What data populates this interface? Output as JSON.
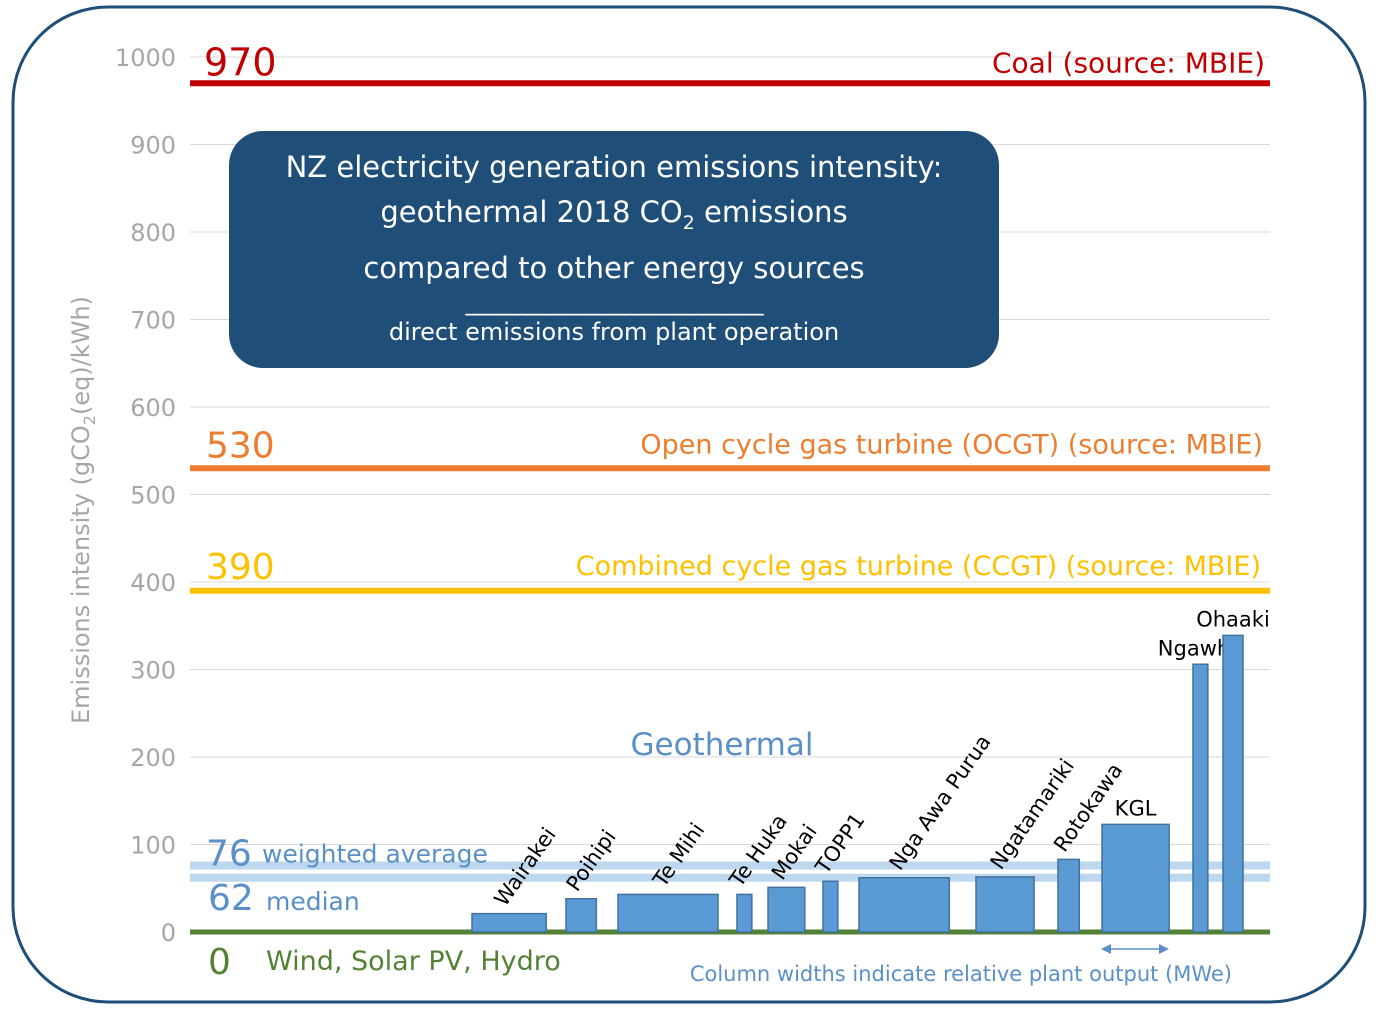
{
  "chart_data": {
    "type": "bar",
    "title_lines": [
      "NZ electricity generation emissions intensity:",
      "geothermal 2018 CO",
      "2",
      " emissions",
      "compared to other energy sources"
    ],
    "title_rule": "___________________________",
    "subtitle": "direct emissions from plant operation",
    "ylabel_parts": [
      "Emissions intensity (gCO",
      "2",
      "(eq)/kWh)"
    ],
    "ylim": [
      0,
      1000
    ],
    "yticks": [
      "0",
      "100",
      "200",
      "300",
      "400",
      "500",
      "600",
      "700",
      "800",
      "900",
      "1000"
    ],
    "grid": true,
    "group_label": "Geothermal",
    "width_note": "Column widths indicate relative plant output (MWe)",
    "categories": [
      "Wairakei",
      "Poihipi",
      "Te Mihi",
      "Te Huka",
      "Mokai",
      "TOPP1",
      "Nga Awa Purua",
      "Ngatamariki",
      "Rotokawa",
      "KGL",
      "Ngawha",
      "Ohaaki"
    ],
    "values": [
      21,
      38,
      43,
      43,
      51,
      58,
      62,
      63,
      83,
      123,
      306,
      339
    ],
    "relative_output_mwe": [
      115,
      47,
      155,
      23,
      57,
      23,
      140,
      90,
      33,
      104,
      23,
      31
    ],
    "bar_color": "#5b9bd5",
    "reference_lines": [
      {
        "value": 970,
        "value_label": "970",
        "label": "Coal (source: MBIE)",
        "color": "#c00000"
      },
      {
        "value": 530,
        "value_label": "530",
        "label": "Open cycle gas turbine (OCGT) (source: MBIE)",
        "color": "#ed7d31"
      },
      {
        "value": 390,
        "value_label": "390",
        "label": "Combined cycle gas turbine (CCGT) (source: MBIE)",
        "color": "#ffc000"
      },
      {
        "value": 76,
        "value_label": "76",
        "label": "weighted average",
        "color": "#bdd7ee",
        "text_color": "#5b8fc7"
      },
      {
        "value": 62,
        "value_label": "62",
        "label": "median",
        "color": "#bdd7ee",
        "text_color": "#5b8fc7"
      },
      {
        "value": 0,
        "value_label": "0",
        "label": "Wind, Solar PV, Hydro",
        "color": "#548235"
      }
    ]
  }
}
